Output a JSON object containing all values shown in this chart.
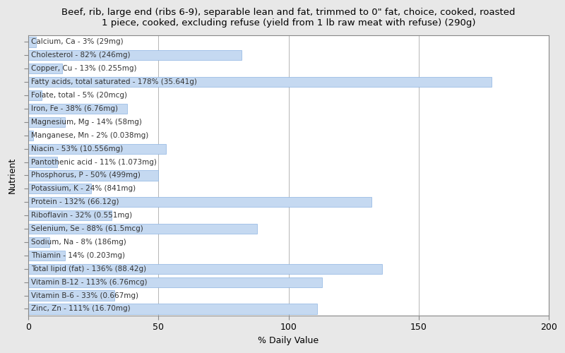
{
  "title": "Beef, rib, large end (ribs 6-9), separable lean and fat, trimmed to 0\" fat, choice, cooked, roasted\n1 piece, cooked, excluding refuse (yield from 1 lb raw meat with refuse) (290g)",
  "xlabel": "% Daily Value",
  "ylabel": "Nutrient",
  "xlim": [
    0,
    200
  ],
  "xticks": [
    0,
    50,
    100,
    150,
    200
  ],
  "nutrients": [
    "Calcium, Ca - 3% (29mg)",
    "Cholesterol - 82% (246mg)",
    "Copper, Cu - 13% (0.255mg)",
    "Fatty acids, total saturated - 178% (35.641g)",
    "Folate, total - 5% (20mcg)",
    "Iron, Fe - 38% (6.76mg)",
    "Magnesium, Mg - 14% (58mg)",
    "Manganese, Mn - 2% (0.038mg)",
    "Niacin - 53% (10.556mg)",
    "Pantothenic acid - 11% (1.073mg)",
    "Phosphorus, P - 50% (499mg)",
    "Potassium, K - 24% (841mg)",
    "Protein - 132% (66.12g)",
    "Riboflavin - 32% (0.551mg)",
    "Selenium, Se - 88% (61.5mcg)",
    "Sodium, Na - 8% (186mg)",
    "Thiamin - 14% (0.203mg)",
    "Total lipid (fat) - 136% (88.42g)",
    "Vitamin B-12 - 113% (6.76mcg)",
    "Vitamin B-6 - 33% (0.667mg)",
    "Zinc, Zn - 111% (16.70mg)"
  ],
  "values": [
    3,
    82,
    13,
    178,
    5,
    38,
    14,
    2,
    53,
    11,
    50,
    24,
    132,
    32,
    88,
    8,
    14,
    136,
    113,
    33,
    111
  ],
  "bar_color": "#c5d9f1",
  "bar_edge_color": "#8db4e2",
  "figure_bg": "#e8e8e8",
  "axes_bg": "#ffffff",
  "title_fontsize": 9.5,
  "axis_label_fontsize": 9,
  "tick_fontsize": 9,
  "bar_label_fontsize": 7.5,
  "label_color": "#333333"
}
